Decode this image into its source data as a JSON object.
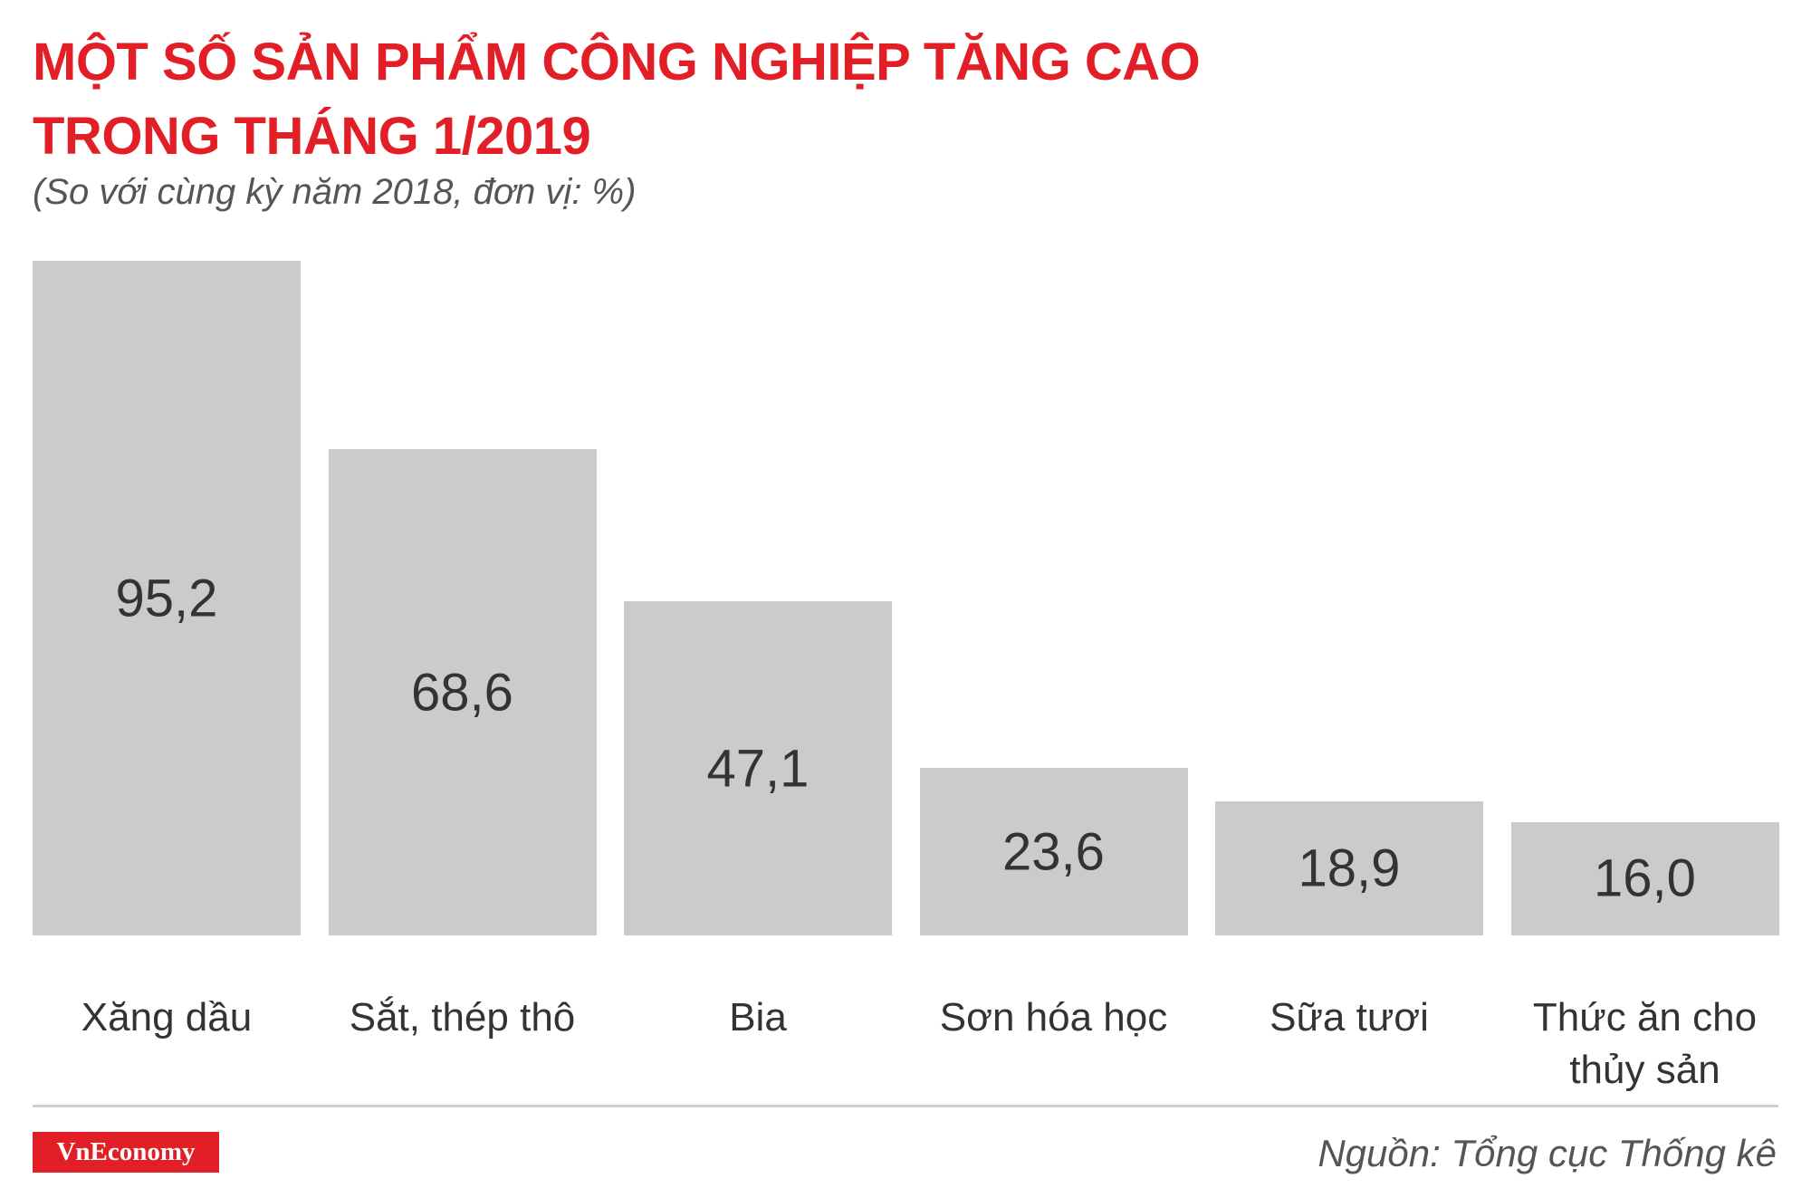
{
  "chart_data": {
    "type": "bar",
    "title": "MỘT SỐ SẢN PHẨM CÔNG NGHIỆP TĂNG CAO TRONG THÁNG 1/2019",
    "subtitle": "(So với cùng kỳ năm 2018, đơn vị: %)",
    "categories": [
      "Xăng dầu",
      "Sắt, thép thô",
      "Bia",
      "Sơn hóa học",
      "Sữa tươi",
      "Thức ăn cho thủy sản"
    ],
    "values": [
      95.2,
      68.6,
      47.1,
      23.6,
      18.9,
      16.0
    ],
    "value_labels": [
      "95,2",
      "68,6",
      "47,1",
      "23,6",
      "18,9",
      "16,0"
    ],
    "color": "#cccbcb",
    "logo": "VnEconomy",
    "source": "Nguồn: Tổng cục Thống kê"
  }
}
